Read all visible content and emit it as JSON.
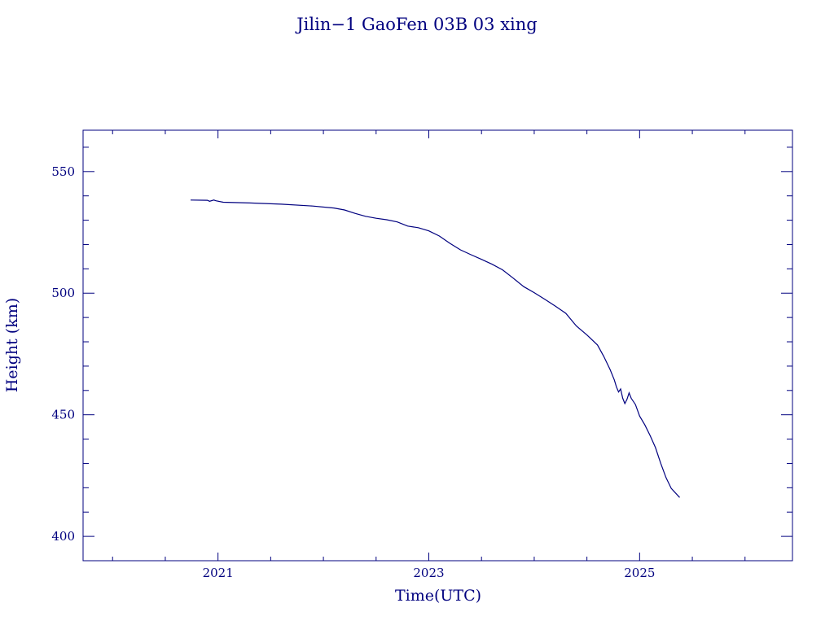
{
  "chart_data": {
    "type": "line",
    "title": "Jilin−1 GaoFen 03B 03 xing",
    "xlabel": "Time(UTC)",
    "ylabel": "Height (km)",
    "xlim": [
      2019.72,
      2026.45
    ],
    "ylim": [
      390,
      567
    ],
    "x_ticks": [
      2021,
      2023,
      2025
    ],
    "x_tick_labels": [
      "2021",
      "2023",
      "2025"
    ],
    "y_ticks": [
      400,
      450,
      500,
      550
    ],
    "y_tick_labels": [
      "400",
      "450",
      "500",
      "550"
    ],
    "grid": false,
    "colors": {
      "axes": "#00007f",
      "series": "#00007f"
    },
    "series": [
      {
        "x": [
          2020.74,
          2020.9,
          2020.92,
          2020.96,
          2020.98,
          2021.05,
          2021.3,
          2021.6,
          2021.9,
          2022.1,
          2022.2,
          2022.3,
          2022.4,
          2022.5,
          2022.6,
          2022.7,
          2022.8,
          2022.9,
          2023.0,
          2023.1,
          2023.2,
          2023.3,
          2023.4,
          2023.5,
          2023.6,
          2023.7,
          2023.8,
          2023.9,
          2024.0,
          2024.1,
          2024.2,
          2024.3,
          2024.4,
          2024.5,
          2024.6,
          2024.66,
          2024.72,
          2024.76,
          2024.78,
          2024.8,
          2024.82,
          2024.84,
          2024.86,
          2024.88,
          2024.9,
          2024.92,
          2024.96,
          2025.0,
          2025.05,
          2025.1,
          2025.15,
          2025.2,
          2025.25,
          2025.3,
          2025.38
        ],
        "y": [
          538.3,
          538.2,
          537.8,
          538.3,
          538.0,
          537.4,
          537.1,
          536.6,
          535.8,
          535.0,
          534.2,
          532.8,
          531.6,
          530.8,
          530.2,
          529.3,
          527.6,
          526.9,
          525.6,
          523.5,
          520.5,
          517.8,
          515.8,
          513.9,
          511.9,
          509.6,
          506.2,
          502.7,
          500.2,
          497.5,
          494.7,
          491.7,
          486.5,
          482.8,
          478.7,
          474.0,
          468.6,
          464.3,
          461.4,
          459.4,
          460.6,
          456.8,
          454.6,
          456.3,
          459.0,
          456.8,
          454.2,
          449.5,
          445.8,
          441.4,
          436.5,
          430.1,
          424.2,
          419.7,
          416.0
        ]
      }
    ]
  }
}
